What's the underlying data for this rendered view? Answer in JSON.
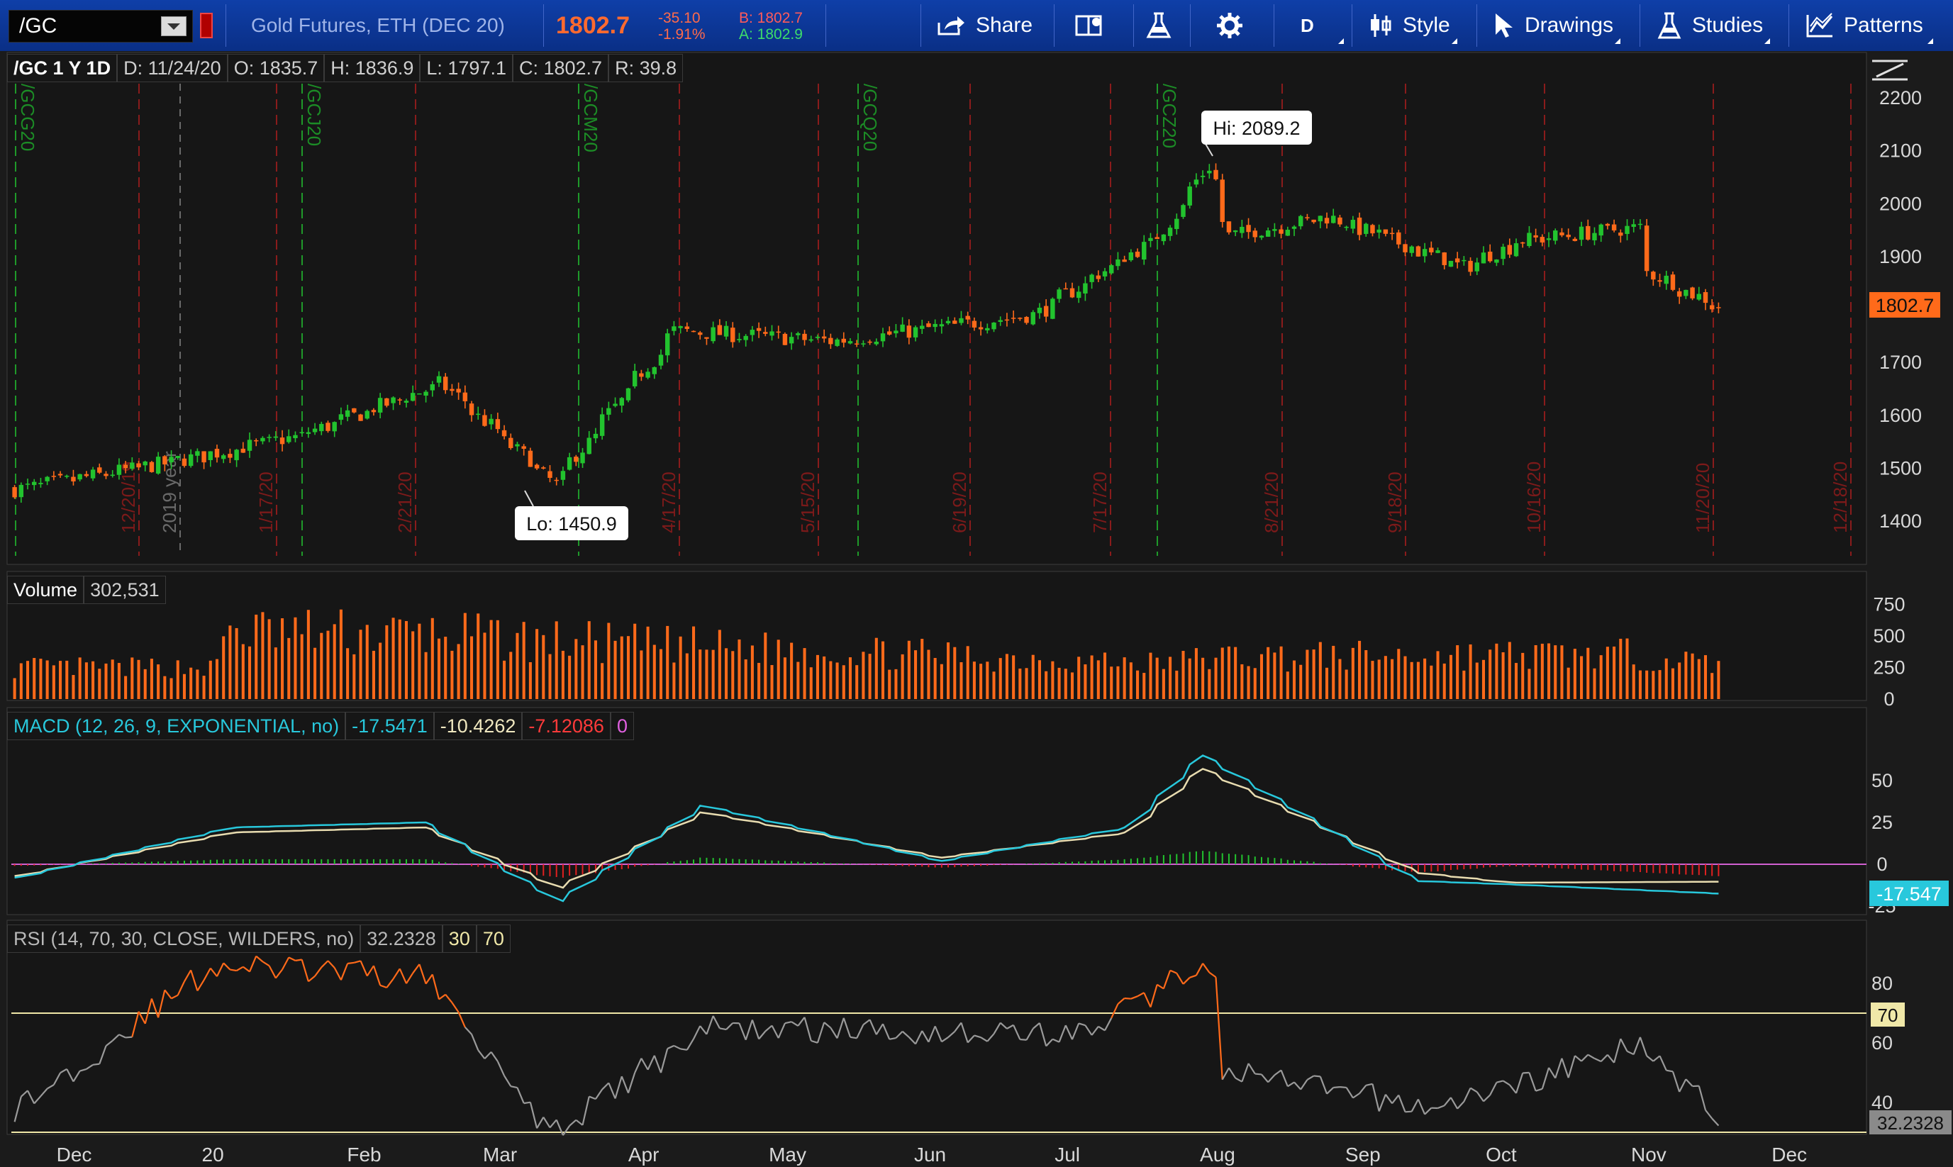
{
  "toolbar": {
    "symbol": "/GC",
    "description": "Gold Futures, ETH (DEC 20)",
    "last": "1802.7",
    "change": "-35.10",
    "change_pct": "-1.91%",
    "bid": "B: 1802.7",
    "ask": "A: 1802.9",
    "share": "Share",
    "aggregation": "D",
    "style": "Style",
    "drawings": "Drawings",
    "studies": "Studies",
    "patterns": "Patterns"
  },
  "price_header": {
    "symbol_period": "/GC 1 Y 1D",
    "date": "D: 11/24/20",
    "open": "O: 1835.7",
    "high": "H: 1836.9",
    "low": "L: 1797.1",
    "close": "C: 1802.7",
    "range": "R: 39.8"
  },
  "annotations": {
    "hi": "Hi: 2089.2",
    "lo": "Lo: 1450.9",
    "price_badge": "1802.7"
  },
  "contract_labels": [
    "/GCG20",
    "/GCJ20",
    "/GCM20",
    "/GCQ20",
    "/GCZ20"
  ],
  "expiration_labels": [
    "12/20/19",
    "1/17/20",
    "2/21/20",
    "4/17/20",
    "5/15/20",
    "6/19/20",
    "7/17/20",
    "8/21/20",
    "9/18/20",
    "10/16/20",
    "11/20/20",
    "12/18/20"
  ],
  "year_label": "2019 year",
  "volume": {
    "label": "Volume",
    "value": "302,531"
  },
  "macd": {
    "label": "MACD (12, 26, 9, EXPONENTIAL, no)",
    "value": "-17.5471",
    "avg": "-10.4262",
    "diff": "-7.12086",
    "zero": "0",
    "badge": "-17.547"
  },
  "rsi": {
    "label": "RSI (14, 70, 30, CLOSE, WILDERS, no)",
    "value": "32.2328",
    "os": "30",
    "ob": "70",
    "badge": "32.2328",
    "badge70": "70"
  },
  "axes": {
    "price_ticks": [
      "2200",
      "2100",
      "2000",
      "1900",
      "1800",
      "1700",
      "1600",
      "1500",
      "1400"
    ],
    "volume_ticks": [
      "750",
      "500",
      "250",
      "0"
    ],
    "macd_ticks": [
      "50",
      "25",
      "0",
      "-25"
    ],
    "rsi_ticks": [
      "80",
      "60",
      "40"
    ],
    "months": [
      "Dec",
      "20",
      "Feb",
      "Mar",
      "Apr",
      "May",
      "Jun",
      "Jul",
      "Aug",
      "Sep",
      "Oct",
      "Nov",
      "Dec"
    ]
  },
  "colors": {
    "up": "#22c32e",
    "down": "#ff6a1a",
    "macd": "#28c8dc",
    "avg": "#e8dcb0",
    "zero": "#d060d0",
    "rsi": "#9a9a9a",
    "rsi_ob": "#ff6a1a",
    "threshold": "#f0e8a8"
  },
  "chart_data": [
    {
      "type": "line",
      "title": "/GC 1 Y 1D",
      "ylim": [
        1380,
        2220
      ],
      "x": [
        "Nov 25 2019",
        "Dec 27",
        "Jan 24",
        "Feb 24",
        "Mar 19",
        "Apr 14",
        "May 18",
        "Jun 30",
        "Jul 27",
        "Aug 6",
        "Aug 11",
        "Sep 1",
        "Sep 30",
        "Oct 12",
        "Nov 6",
        "Nov 9",
        "Nov 24 2020"
      ],
      "series": [
        {
          "values": [
            1460,
            1510,
            1560,
            1660,
            1470,
            1760,
            1740,
            1790,
            1940,
            2070,
            1940,
            1975,
            1880,
            1930,
            1955,
            1870,
            1802.7
          ]
        }
      ]
    },
    {
      "type": "bar",
      "ylim": [
        0,
        900
      ],
      "x": [
        "Nov 2019",
        "Jan 8",
        "Feb 26",
        "Mar 9",
        "Jul 28",
        "Aug 7",
        "Nov 9",
        "Nov 24 2020"
      ],
      "series": [
        {
          "values": [
            280,
            760,
            720,
            660,
            350,
            440,
            470,
            302.531
          ]
        }
      ]
    },
    {
      "type": "line",
      "title": "MACD (12, 26, 9, EXPONENTIAL, no)",
      "ylim": [
        -30,
        70
      ],
      "x": [
        "Nov 25 2019",
        "Jan 10",
        "Feb 20",
        "Mar 20",
        "Apr 20",
        "Jun 10",
        "Jul 20",
        "Aug 5",
        "Sep 20",
        "Oct 10",
        "Nov 24 2020"
      ],
      "series": [
        {
          "name": "MACD",
          "values": [
            -8,
            22,
            25,
            -22,
            35,
            2,
            22,
            65,
            -10,
            -12,
            -17.5471
          ]
        },
        {
          "name": "Avg",
          "values": [
            -7,
            19,
            22,
            -14,
            31,
            4,
            19,
            57,
            -5,
            -11,
            -10.4262
          ]
        }
      ]
    },
    {
      "type": "line",
      "title": "RSI (14, 70, 30, CLOSE, WILDERS, no)",
      "ylim": [
        28,
        92
      ],
      "x": [
        "Nov 25 2019",
        "Jan 6",
        "Feb 21",
        "Mar 19",
        "Apr 20",
        "Jul 10",
        "Aug 6",
        "Aug 10",
        "Sep 24",
        "Nov 9",
        "Nov 24 2020"
      ],
      "series": [
        {
          "values": [
            38,
            86,
            82,
            30,
            65,
            63,
            88,
            50,
            38,
            60,
            32.2328
          ]
        }
      ]
    }
  ]
}
